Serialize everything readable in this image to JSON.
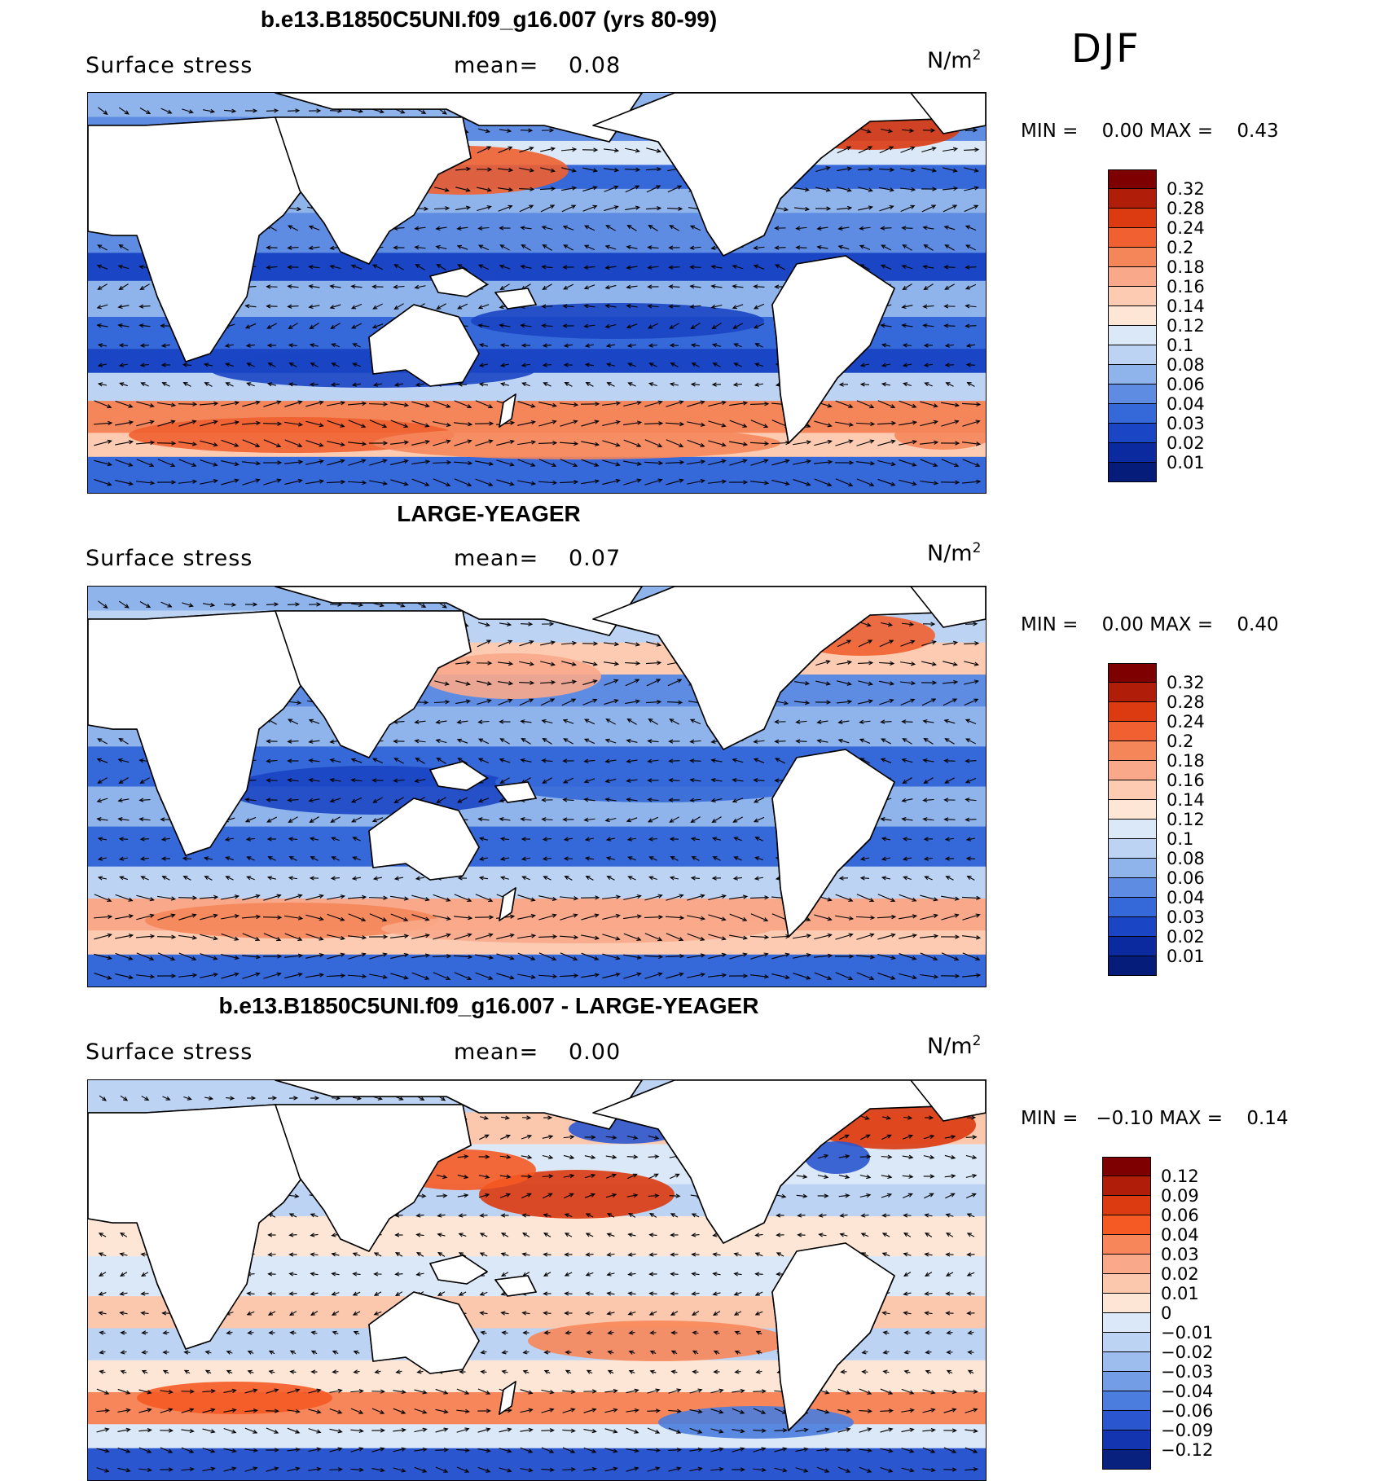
{
  "season": "DJF",
  "panels": [
    {
      "title": "b.e13.B1850C5UNI.f09_g16.007 (yrs 80-99)",
      "variable": "Surface stress",
      "mean_label": "mean=",
      "mean_value": "0.08",
      "units_base": "N/m",
      "units_exp": "2",
      "min_label": "MIN =",
      "min_value": "0.00",
      "max_label": "MAX =",
      "max_value": "0.43",
      "colorbar": [
        "0.32",
        "0.28",
        "0.24",
        "0.2",
        "0.18",
        "0.16",
        "0.14",
        "0.12",
        "0.1",
        "0.08",
        "0.06",
        "0.04",
        "0.03",
        "0.02",
        "0.01"
      ]
    },
    {
      "title": "LARGE-YEAGER",
      "variable": "Surface stress",
      "mean_label": "mean=",
      "mean_value": "0.07",
      "units_base": "N/m",
      "units_exp": "2",
      "min_label": "MIN =",
      "min_value": "0.00",
      "max_label": "MAX =",
      "max_value": "0.40",
      "colorbar": [
        "0.32",
        "0.28",
        "0.24",
        "0.2",
        "0.18",
        "0.16",
        "0.14",
        "0.12",
        "0.1",
        "0.08",
        "0.06",
        "0.04",
        "0.03",
        "0.02",
        "0.01"
      ]
    },
    {
      "title": "b.e13.B1850C5UNI.f09_g16.007 - LARGE-YEAGER",
      "variable": "Surface stress",
      "mean_label": "mean=",
      "mean_value": "0.00",
      "units_base": "N/m",
      "units_exp": "2",
      "min_label": "MIN =",
      "min_value": "−0.10",
      "max_label": "MAX =",
      "max_value": "0.14",
      "colorbar": [
        "0.12",
        "0.09",
        "0.06",
        "0.04",
        "0.03",
        "0.02",
        "0.01",
        "0",
        "−0.01",
        "−0.02",
        "−0.03",
        "−0.04",
        "−0.06",
        "−0.09",
        "−0.12"
      ]
    }
  ],
  "palette_seq": [
    "#7f0000",
    "#b01e0a",
    "#dc3a10",
    "#f06030",
    "#f5865a",
    "#f9a98a",
    "#fccbb2",
    "#fde6d6",
    "#dbe8f8",
    "#bcd3f4",
    "#8fb4ec",
    "#5d8ce2",
    "#3568d8",
    "#1a45c4",
    "#0b2aa0",
    "#061c7a"
  ],
  "palette_div": [
    "#7f0000",
    "#b01e0a",
    "#dc3a10",
    "#f55a24",
    "#f7875a",
    "#f9a98a",
    "#fcc8ad",
    "#fde6d6",
    "#dbe8f8",
    "#bcd3f4",
    "#9cbdee",
    "#739ee6",
    "#4a7ddd",
    "#2a57cf",
    "#1336b0",
    "#08217f"
  ]
}
